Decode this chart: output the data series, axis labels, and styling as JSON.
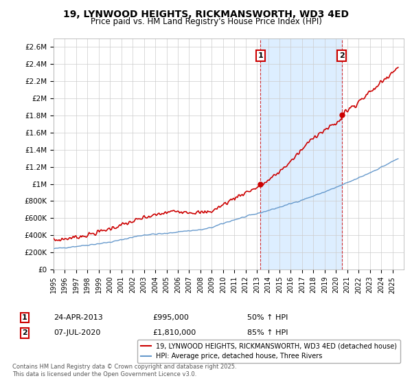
{
  "title": "19, LYNWOOD HEIGHTS, RICKMANSWORTH, WD3 4ED",
  "subtitle": "Price paid vs. HM Land Registry's House Price Index (HPI)",
  "ylabel_ticks": [
    "£0",
    "£200K",
    "£400K",
    "£600K",
    "£800K",
    "£1M",
    "£1.2M",
    "£1.4M",
    "£1.6M",
    "£1.8M",
    "£2M",
    "£2.2M",
    "£2.4M",
    "£2.6M"
  ],
  "ytick_values": [
    0,
    200000,
    400000,
    600000,
    800000,
    1000000,
    1200000,
    1400000,
    1600000,
    1800000,
    2000000,
    2200000,
    2400000,
    2600000
  ],
  "ylim": [
    0,
    2700000
  ],
  "xlim_start": 1995.0,
  "xlim_end": 2026.0,
  "purchase1_year": 2013.31,
  "purchase1_price": 995000,
  "purchase1_label": "1",
  "purchase1_date": "24-APR-2013",
  "purchase1_pct": "50%",
  "purchase2_year": 2020.52,
  "purchase2_price": 1810000,
  "purchase2_label": "2",
  "purchase2_date": "07-JUL-2020",
  "purchase2_pct": "85%",
  "line_property_color": "#cc0000",
  "line_hpi_color": "#6699cc",
  "shade_color": "#ddeeff",
  "legend_property": "19, LYNWOOD HEIGHTS, RICKMANSWORTH, WD3 4ED (detached house)",
  "legend_hpi": "HPI: Average price, detached house, Three Rivers",
  "footer": "Contains HM Land Registry data © Crown copyright and database right 2025.\nThis data is licensed under the Open Government Licence v3.0.",
  "background_color": "#ffffff",
  "grid_color": "#cccccc"
}
